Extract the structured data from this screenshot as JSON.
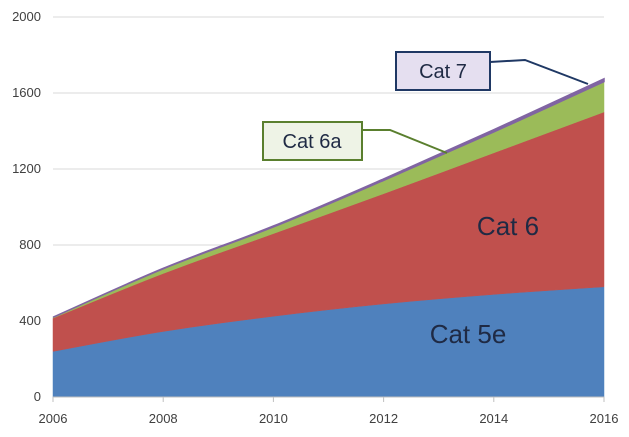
{
  "chart_data": {
    "type": "area",
    "stacked": true,
    "title": "",
    "xlabel": "",
    "ylabel": "",
    "x": [
      2006,
      2008,
      2010,
      2012,
      2014,
      2016
    ],
    "xlim": [
      2006,
      2016
    ],
    "ylim": [
      0,
      2000
    ],
    "x_ticks": [
      2006,
      2008,
      2010,
      2012,
      2014,
      2016
    ],
    "y_ticks": [
      0,
      400,
      800,
      1200,
      1600,
      2000
    ],
    "grid": "horizontal",
    "legend": "none",
    "series": [
      {
        "name": "Cat 5e",
        "color": "#4f81bd",
        "values": [
          240,
          345,
          425,
          490,
          540,
          580
        ]
      },
      {
        "name": "Cat 6",
        "color": "#c0504d",
        "values": [
          175,
          305,
          435,
          580,
          745,
          920
        ]
      },
      {
        "name": "Cat 6a",
        "color": "#9bbb59",
        "values": [
          5,
          25,
          35,
          70,
          110,
          160
        ]
      },
      {
        "name": "Cat 7",
        "color": "#8064a2",
        "values": [
          0,
          2,
          5,
          8,
          12,
          15
        ]
      }
    ],
    "callouts": [
      {
        "series": "Cat 7",
        "text": "Cat 7",
        "border": "#1f3864",
        "fill": "#e5dff0"
      },
      {
        "series": "Cat 6a",
        "text": "Cat 6a",
        "border": "#5a7f2e",
        "fill": "#eef3e6"
      }
    ]
  }
}
